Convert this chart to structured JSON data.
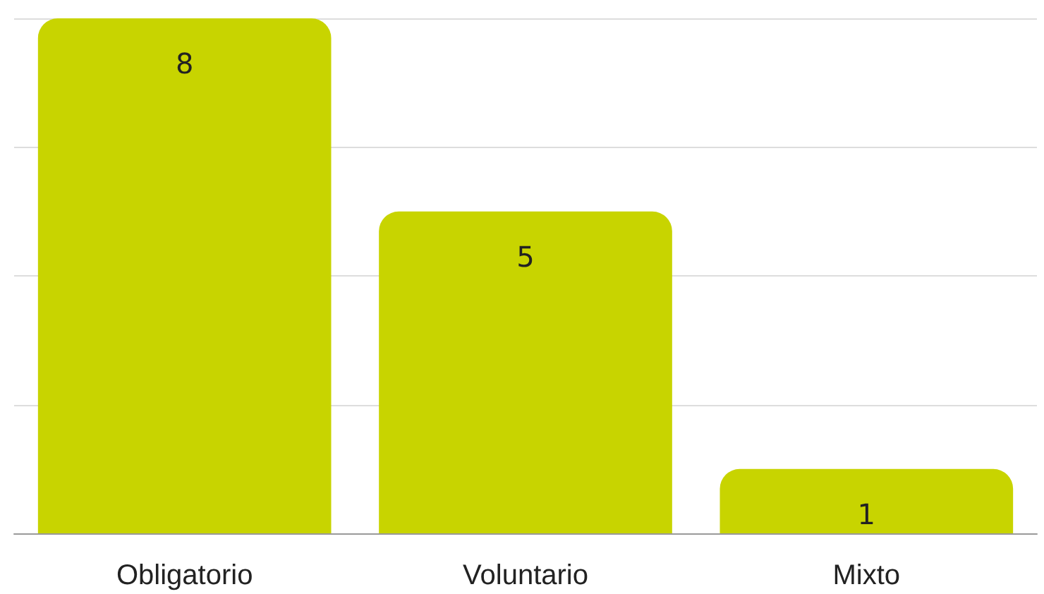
{
  "chart_data": {
    "type": "bar",
    "categories": [
      "Obligatorio",
      "Voluntario",
      "Mixto"
    ],
    "values": [
      8,
      5,
      1
    ],
    "color": "#c8d400",
    "ylim": [
      0,
      8
    ],
    "yticks": [
      0,
      2,
      4,
      6,
      8
    ],
    "grid": "y",
    "tick_labels": "x",
    "data_labels": true
  }
}
